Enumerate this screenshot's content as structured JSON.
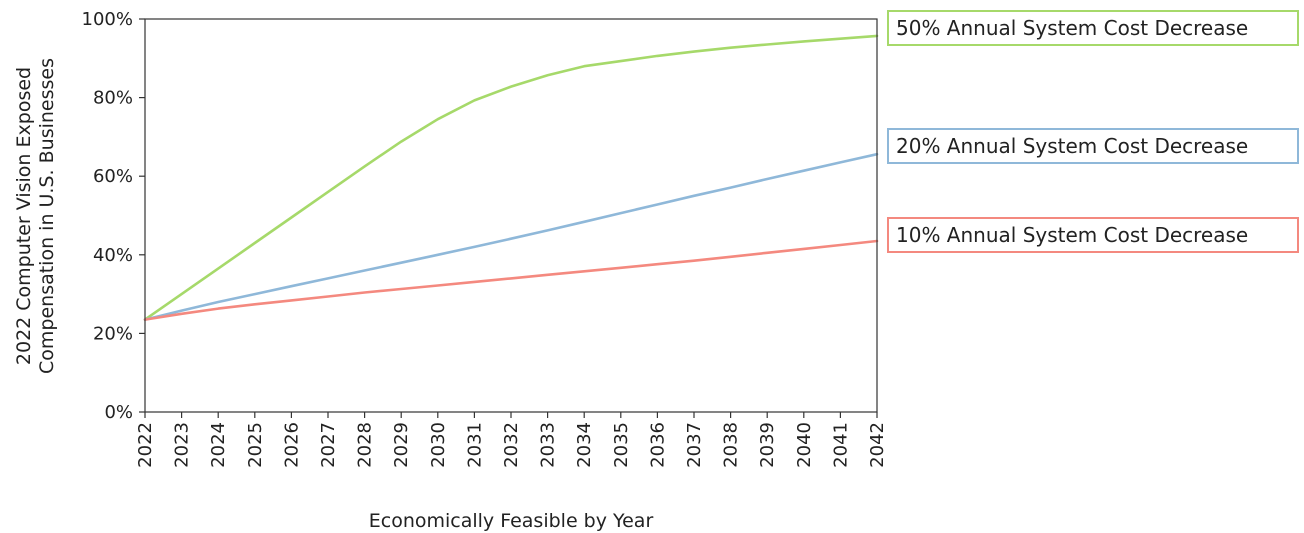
{
  "chart_data": {
    "type": "line",
    "title": "",
    "xlabel": "Economically Feasible by Year",
    "ylabel_lines": [
      "2022 Computer Vision Exposed",
      "Compensation in U.S. Businesses"
    ],
    "xlim": [
      2022,
      2042
    ],
    "ylim": [
      0,
      100
    ],
    "x_ticks": [
      "2022",
      "2023",
      "2024",
      "2025",
      "2026",
      "2027",
      "2028",
      "2029",
      "2030",
      "2031",
      "2032",
      "2033",
      "2034",
      "2035",
      "2036",
      "2037",
      "2038",
      "2039",
      "2040",
      "2041",
      "2042"
    ],
    "y_ticks": [
      "0%",
      "20%",
      "40%",
      "60%",
      "80%",
      "100%"
    ],
    "y_tick_values": [
      0,
      20,
      40,
      60,
      80,
      100
    ],
    "legend_placement": "right, labels at line ends",
    "x": [
      2022,
      2023,
      2024,
      2025,
      2026,
      2027,
      2028,
      2029,
      2030,
      2031,
      2032,
      2033,
      2034,
      2035,
      2036,
      2037,
      2038,
      2039,
      2040,
      2041,
      2042
    ],
    "series": [
      {
        "name": "50% Annual System Cost Decrease",
        "color": "#a6d96a",
        "values": [
          23.5,
          30.0,
          36.5,
          43.0,
          49.5,
          56.0,
          62.5,
          68.8,
          74.5,
          79.3,
          82.8,
          85.7,
          88.0,
          89.3,
          90.6,
          91.7,
          92.7,
          93.5,
          94.3,
          95.0,
          95.7
        ]
      },
      {
        "name": "20% Annual System Cost Decrease",
        "color": "#8fb8d9",
        "values": [
          23.5,
          25.8,
          28.0,
          30.0,
          32.0,
          34.0,
          36.0,
          38.0,
          40.0,
          42.0,
          44.1,
          46.2,
          48.4,
          50.6,
          52.8,
          55.0,
          57.1,
          59.3,
          61.4,
          63.5,
          65.6
        ]
      },
      {
        "name": "10% Annual System Cost Decrease",
        "color": "#f4897f",
        "values": [
          23.5,
          25.0,
          26.3,
          27.4,
          28.4,
          29.4,
          30.4,
          31.3,
          32.2,
          33.1,
          34.0,
          34.9,
          35.8,
          36.7,
          37.6,
          38.5,
          39.5,
          40.5,
          41.5,
          42.5,
          43.5
        ]
      }
    ]
  }
}
